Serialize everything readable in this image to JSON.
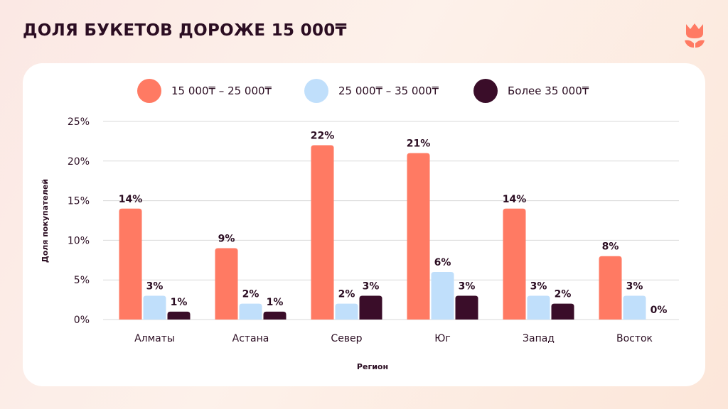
{
  "page": {
    "title": "ДОЛЯ БУКЕТОВ ДОРОЖЕ 15 000₸",
    "logo_icon": "tulip-icon"
  },
  "colors": {
    "series1": "#ff7a63",
    "series2": "#c0dffb",
    "series3": "#3a0d29",
    "text": "#2b0d22",
    "grid": "#d9d9d9"
  },
  "chart_data": {
    "type": "bar",
    "categories": [
      "Алматы",
      "Астана",
      "Север",
      "Юг",
      "Запад",
      "Восток"
    ],
    "series": [
      {
        "name": "15 000₸ – 25 000₸",
        "values": [
          14,
          9,
          22,
          21,
          14,
          8
        ],
        "labels": [
          "14%",
          "9%",
          "22%",
          "21%",
          "14%",
          "8%"
        ]
      },
      {
        "name": "25 000₸ – 35 000₸",
        "values": [
          3,
          2,
          2,
          6,
          3,
          3
        ],
        "labels": [
          "3%",
          "2%",
          "2%",
          "6%",
          "3%",
          "3%"
        ]
      },
      {
        "name": "Более 35 000₸",
        "values": [
          1,
          1,
          3,
          3,
          2,
          0
        ],
        "labels": [
          "1%",
          "1%",
          "3%",
          "3%",
          "2%",
          "0%"
        ]
      }
    ],
    "yticks": [
      "0%",
      "5%",
      "10%",
      "15%",
      "20%",
      "25%"
    ],
    "ylim": [
      0,
      25
    ],
    "xlabel": "Регион",
    "ylabel": "Доля покупателей",
    "grid": true,
    "legend_position": "top"
  }
}
